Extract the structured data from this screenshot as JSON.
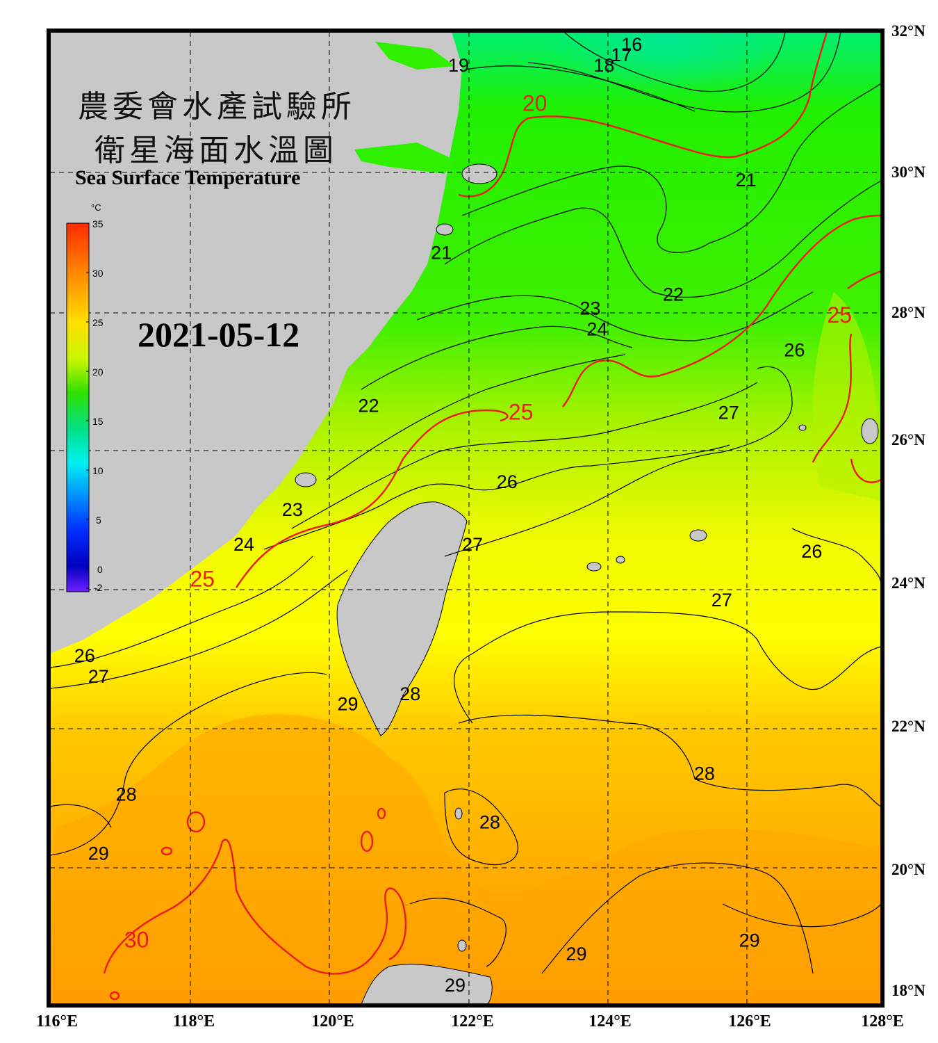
{
  "title": {
    "line1": "農委會水產試驗所",
    "line2": "衛星海面水溫圖",
    "english": "Sea Surface Temperature"
  },
  "date": "2021-05-12",
  "colorbar": {
    "unit": "°C",
    "ticks": [
      "35",
      "30",
      "25",
      "20",
      "15",
      "10",
      "5",
      "0",
      "-2"
    ],
    "colors": [
      "#ff2a00",
      "#ff8000",
      "#ffd000",
      "#ffff00",
      "#a8f000",
      "#20e000",
      "#00e080",
      "#00f0f0",
      "#0090ff",
      "#0030ff",
      "#0000d0",
      "#7020ff"
    ]
  },
  "axes": {
    "latitudes": [
      "32°N",
      "30°N",
      "28°N",
      "26°N",
      "24°N",
      "22°N",
      "20°N",
      "18°N"
    ],
    "longitudes": [
      "116°E",
      "118°E",
      "120°E",
      "122°E",
      "124°E",
      "126°E",
      "128°E"
    ]
  },
  "contour_labels": [
    {
      "text": "16",
      "lon": 124.4,
      "lat": 31.8,
      "color": "black"
    },
    {
      "text": "17",
      "lon": 124.25,
      "lat": 31.65,
      "color": "black"
    },
    {
      "text": "18",
      "lon": 124.0,
      "lat": 31.5,
      "color": "black"
    },
    {
      "text": "19",
      "lon": 121.9,
      "lat": 31.5,
      "color": "black"
    },
    {
      "text": "20",
      "lon": 123.0,
      "lat": 30.95,
      "color": "red"
    },
    {
      "text": "21",
      "lon": 126.05,
      "lat": 29.85,
      "color": "black"
    },
    {
      "text": "21",
      "lon": 121.65,
      "lat": 28.8,
      "color": "black"
    },
    {
      "text": "22",
      "lon": 125.0,
      "lat": 28.2,
      "color": "black"
    },
    {
      "text": "25",
      "lon": 127.4,
      "lat": 27.9,
      "color": "red"
    },
    {
      "text": "23",
      "lon": 123.8,
      "lat": 28.0,
      "color": "black"
    },
    {
      "text": "24",
      "lon": 123.9,
      "lat": 27.7,
      "color": "black"
    },
    {
      "text": "26",
      "lon": 126.75,
      "lat": 27.4,
      "color": "black"
    },
    {
      "text": "22",
      "lon": 120.6,
      "lat": 26.6,
      "color": "black"
    },
    {
      "text": "25",
      "lon": 122.8,
      "lat": 26.5,
      "color": "red"
    },
    {
      "text": "27",
      "lon": 125.8,
      "lat": 26.5,
      "color": "black"
    },
    {
      "text": "26",
      "lon": 122.6,
      "lat": 25.5,
      "color": "black"
    },
    {
      "text": "23",
      "lon": 119.5,
      "lat": 25.1,
      "color": "black"
    },
    {
      "text": "24",
      "lon": 118.8,
      "lat": 24.6,
      "color": "black"
    },
    {
      "text": "27",
      "lon": 122.1,
      "lat": 24.6,
      "color": "black"
    },
    {
      "text": "26",
      "lon": 127.0,
      "lat": 24.5,
      "color": "black"
    },
    {
      "text": "25",
      "lon": 118.2,
      "lat": 24.1,
      "color": "red"
    },
    {
      "text": "27",
      "lon": 125.7,
      "lat": 23.8,
      "color": "black"
    },
    {
      "text": "26",
      "lon": 116.5,
      "lat": 23.0,
      "color": "black"
    },
    {
      "text": "27",
      "lon": 116.7,
      "lat": 22.7,
      "color": "black"
    },
    {
      "text": "29",
      "lon": 120.3,
      "lat": 22.3,
      "color": "black"
    },
    {
      "text": "28",
      "lon": 121.2,
      "lat": 22.45,
      "color": "black"
    },
    {
      "text": "28",
      "lon": 125.45,
      "lat": 21.3,
      "color": "black"
    },
    {
      "text": "28",
      "lon": 117.1,
      "lat": 21.0,
      "color": "black"
    },
    {
      "text": "28",
      "lon": 122.35,
      "lat": 20.6,
      "color": "black"
    },
    {
      "text": "29",
      "lon": 116.7,
      "lat": 20.15,
      "color": "black"
    },
    {
      "text": "30",
      "lon": 117.25,
      "lat": 18.9,
      "color": "red"
    },
    {
      "text": "29",
      "lon": 123.6,
      "lat": 18.7,
      "color": "black"
    },
    {
      "text": "29",
      "lon": 126.1,
      "lat": 18.9,
      "color": "black"
    },
    {
      "text": "29",
      "lon": 121.85,
      "lat": 18.25,
      "color": "black"
    }
  ]
}
